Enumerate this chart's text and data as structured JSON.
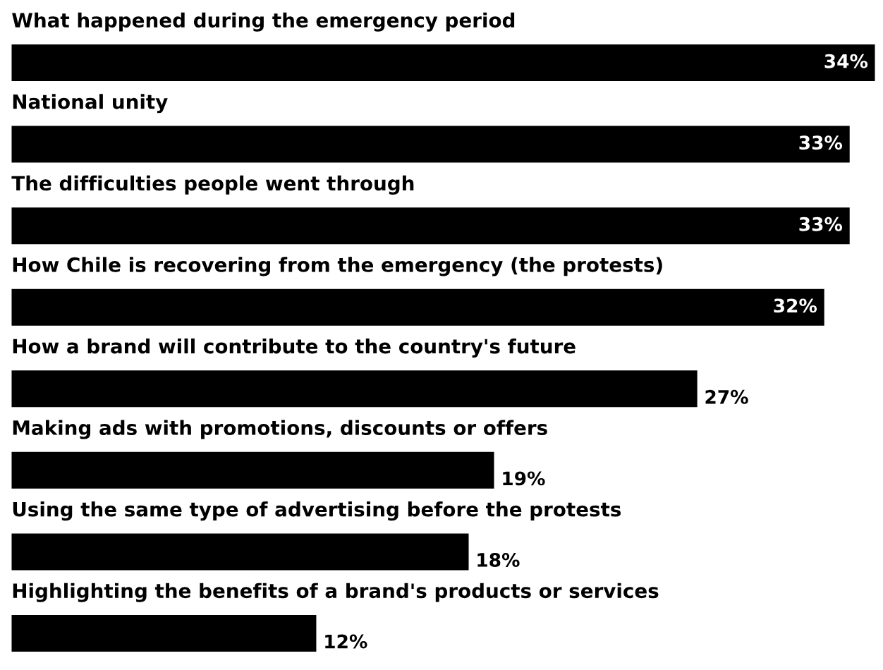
{
  "chart_data": {
    "type": "bar",
    "orientation": "horizontal",
    "categories": [
      "What happened during the emergency period",
      "National unity",
      "The difficulties people went through",
      "How Chile is recovering from the emergency (the protests)",
      "How a brand will contribute to the country's future",
      "Making ads with promotions, discounts or offers",
      "Using the same type of advertising before the protests",
      "Highlighting the benefits of a brand's products or services"
    ],
    "values": [
      34,
      33,
      33,
      32,
      27,
      19,
      18,
      12
    ],
    "value_labels": [
      "34%",
      "33%",
      "33%",
      "32%",
      "27%",
      "19%",
      "18%",
      "12%"
    ],
    "color": "#000000"
  }
}
